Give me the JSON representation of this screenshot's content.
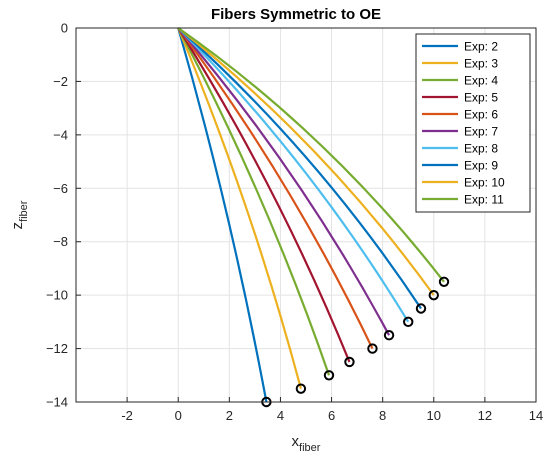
{
  "chart_data": {
    "type": "line",
    "title": "Fibers Symmetric to OE",
    "xlabel": {
      "main": "x",
      "sub": "fiber"
    },
    "ylabel": {
      "main": "z",
      "sub": "fiber"
    },
    "xlim": [
      -4,
      14
    ],
    "ylim": [
      -14,
      0
    ],
    "xticks": [
      -2,
      0,
      2,
      4,
      6,
      8,
      10,
      12,
      14
    ],
    "yticks": [
      0,
      -2,
      -4,
      -6,
      -8,
      -10,
      -12,
      -14
    ],
    "xtick_labels": [
      "-2",
      "0",
      "2",
      "4",
      "6",
      "8",
      "10",
      "12",
      "14"
    ],
    "ytick_labels": [
      "0",
      "−2",
      "−4",
      "−6",
      "−8",
      "−10",
      "−12",
      "−14"
    ],
    "grid": true,
    "legend_position": "top-right",
    "origin": [
      0,
      0
    ],
    "series": [
      {
        "name": "Exp: 2",
        "color": "#0072BD",
        "end": [
          3.45,
          -14.0
        ],
        "bow": 0.05
      },
      {
        "name": "Exp: 3",
        "color": "#EDB120",
        "end": [
          4.8,
          -13.5
        ],
        "bow": 0.07
      },
      {
        "name": "Exp: 4",
        "color": "#77AC30",
        "end": [
          5.9,
          -13.0
        ],
        "bow": 0.08
      },
      {
        "name": "Exp: 5",
        "color": "#A2142F",
        "end": [
          6.7,
          -12.5
        ],
        "bow": 0.09
      },
      {
        "name": "Exp: 6",
        "color": "#D95319",
        "end": [
          7.6,
          -12.0
        ],
        "bow": 0.1
      },
      {
        "name": "Exp: 7",
        "color": "#7E2F8E",
        "end": [
          8.25,
          -11.5
        ],
        "bow": 0.11
      },
      {
        "name": "Exp: 8",
        "color": "#4DBEEE",
        "end": [
          9.0,
          -11.0
        ],
        "bow": 0.12
      },
      {
        "name": "Exp: 9",
        "color": "#0072BD",
        "end": [
          9.5,
          -10.5
        ],
        "bow": 0.13
      },
      {
        "name": "Exp: 10",
        "color": "#EDB120",
        "end": [
          10.0,
          -10.0
        ],
        "bow": 0.14
      },
      {
        "name": "Exp: 11",
        "color": "#77AC30",
        "end": [
          10.4,
          -9.5
        ],
        "bow": 0.15
      }
    ]
  }
}
